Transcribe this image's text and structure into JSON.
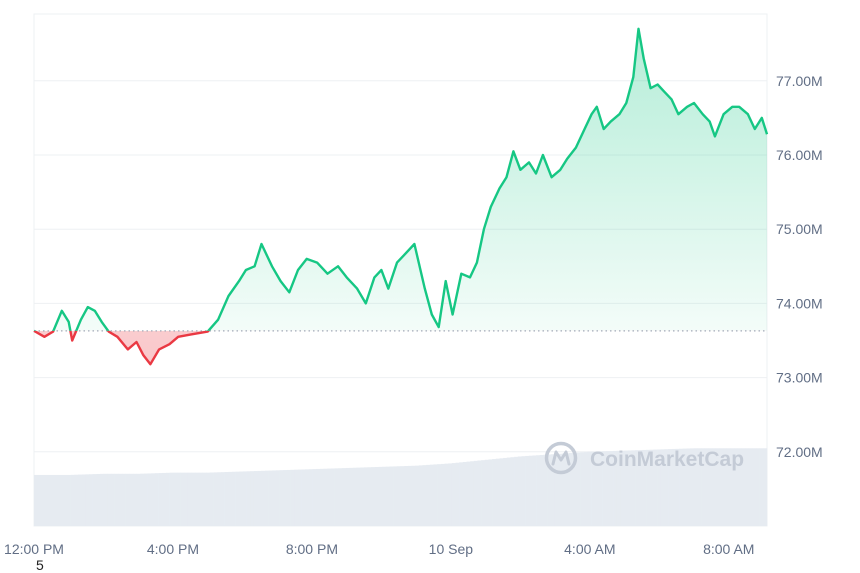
{
  "chart_data": {
    "type": "area",
    "title": "",
    "xlabel": "",
    "ylabel": "",
    "ylim": [
      71.0,
      77.9
    ],
    "baseline": 73.63,
    "x_ticks": [
      "12:00 PM",
      "4:00 PM",
      "8:00 PM",
      "10 Sep",
      "4:00 AM",
      "8:00 AM"
    ],
    "y_ticks": [
      "72.00M",
      "73.00M",
      "74.00M",
      "75.00M",
      "76.00M",
      "77.00M"
    ],
    "series": [
      {
        "points": [
          [
            0.0,
            73.63
          ],
          [
            0.3,
            73.55
          ],
          [
            0.55,
            73.62
          ],
          [
            0.8,
            73.9
          ],
          [
            1.0,
            73.75
          ],
          [
            1.1,
            73.5
          ],
          [
            1.35,
            73.78
          ],
          [
            1.55,
            73.95
          ],
          [
            1.75,
            73.9
          ],
          [
            1.95,
            73.75
          ],
          [
            2.15,
            73.62
          ],
          [
            2.4,
            73.55
          ],
          [
            2.7,
            73.38
          ],
          [
            2.95,
            73.48
          ],
          [
            3.15,
            73.3
          ],
          [
            3.35,
            73.18
          ],
          [
            3.6,
            73.38
          ],
          [
            3.9,
            73.45
          ],
          [
            4.15,
            73.55
          ],
          [
            4.5,
            73.58
          ],
          [
            4.75,
            73.6
          ],
          [
            5.0,
            73.62
          ],
          [
            5.3,
            73.78
          ],
          [
            5.6,
            74.1
          ],
          [
            5.9,
            74.3
          ],
          [
            6.1,
            74.45
          ],
          [
            6.35,
            74.5
          ],
          [
            6.55,
            74.8
          ],
          [
            6.85,
            74.5
          ],
          [
            7.1,
            74.3
          ],
          [
            7.35,
            74.15
          ],
          [
            7.6,
            74.45
          ],
          [
            7.85,
            74.6
          ],
          [
            8.15,
            74.55
          ],
          [
            8.45,
            74.4
          ],
          [
            8.75,
            74.5
          ],
          [
            9.0,
            74.35
          ],
          [
            9.3,
            74.2
          ],
          [
            9.55,
            74.0
          ],
          [
            9.8,
            74.35
          ],
          [
            10.0,
            74.45
          ],
          [
            10.2,
            74.2
          ],
          [
            10.45,
            74.55
          ],
          [
            10.65,
            74.65
          ],
          [
            10.95,
            74.8
          ],
          [
            11.25,
            74.2
          ],
          [
            11.45,
            73.85
          ],
          [
            11.65,
            73.68
          ],
          [
            11.85,
            74.3
          ],
          [
            12.05,
            73.85
          ],
          [
            12.3,
            74.4
          ],
          [
            12.55,
            74.35
          ],
          [
            12.75,
            74.55
          ],
          [
            12.95,
            75.0
          ],
          [
            13.15,
            75.3
          ],
          [
            13.4,
            75.55
          ],
          [
            13.6,
            75.7
          ],
          [
            13.8,
            76.05
          ],
          [
            14.0,
            75.8
          ],
          [
            14.25,
            75.9
          ],
          [
            14.45,
            75.75
          ],
          [
            14.65,
            76.0
          ],
          [
            14.9,
            75.7
          ],
          [
            15.15,
            75.8
          ],
          [
            15.35,
            75.95
          ],
          [
            15.6,
            76.1
          ],
          [
            15.85,
            76.35
          ],
          [
            16.05,
            76.55
          ],
          [
            16.2,
            76.65
          ],
          [
            16.4,
            76.35
          ],
          [
            16.6,
            76.45
          ],
          [
            16.85,
            76.55
          ],
          [
            17.05,
            76.7
          ],
          [
            17.25,
            77.05
          ],
          [
            17.4,
            77.7
          ],
          [
            17.55,
            77.3
          ],
          [
            17.75,
            76.9
          ],
          [
            17.95,
            76.95
          ],
          [
            18.15,
            76.85
          ],
          [
            18.35,
            76.75
          ],
          [
            18.55,
            76.55
          ],
          [
            18.8,
            76.65
          ],
          [
            19.0,
            76.7
          ],
          [
            19.25,
            76.55
          ],
          [
            19.45,
            76.45
          ],
          [
            19.6,
            76.25
          ],
          [
            19.85,
            76.55
          ],
          [
            20.1,
            76.65
          ],
          [
            20.3,
            76.65
          ],
          [
            20.55,
            76.55
          ],
          [
            20.75,
            76.35
          ],
          [
            20.95,
            76.5
          ],
          [
            21.1,
            76.28
          ]
        ]
      }
    ],
    "volume": [
      [
        0,
        0.22
      ],
      [
        1,
        0.22
      ],
      [
        2,
        0.225
      ],
      [
        3,
        0.225
      ],
      [
        4,
        0.23
      ],
      [
        5,
        0.23
      ],
      [
        6,
        0.235
      ],
      [
        7,
        0.24
      ],
      [
        8,
        0.245
      ],
      [
        9,
        0.25
      ],
      [
        10,
        0.255
      ],
      [
        11,
        0.26
      ],
      [
        12,
        0.27
      ],
      [
        13,
        0.285
      ],
      [
        14,
        0.3
      ],
      [
        15,
        0.31
      ],
      [
        16,
        0.32
      ],
      [
        17,
        0.325
      ],
      [
        18,
        0.33
      ],
      [
        19,
        0.335
      ],
      [
        20,
        0.335
      ],
      [
        21,
        0.335
      ]
    ],
    "x_range": [
      0,
      21.1
    ],
    "colors": {
      "up": "#16c784",
      "down": "#ea3943",
      "grid": "#eef0f3",
      "volume": "#e6ebf1"
    },
    "watermark": "CoinMarketCap"
  },
  "footnote": "5"
}
